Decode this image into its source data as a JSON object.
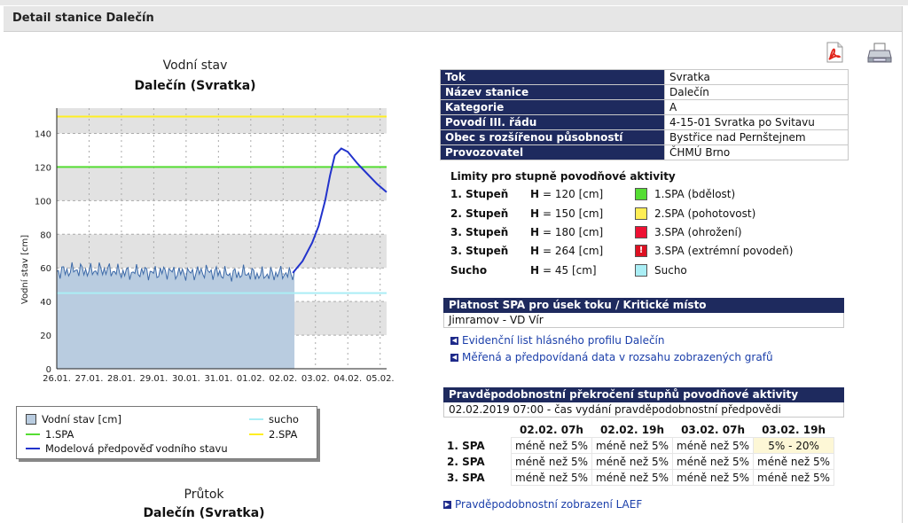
{
  "header": {
    "title": "Detail stanice Dalečín"
  },
  "icons": {
    "pdf": "pdf-icon",
    "print": "printer-icon"
  },
  "chart_data": [
    {
      "type": "line",
      "title": "Vodní stav",
      "subtitle": "Dalečín (Svratka)",
      "ylabel": "Vodní stav [cm]",
      "ylim": [
        0,
        155
      ],
      "yticks": [
        "0",
        "20",
        "40",
        "60",
        "80",
        "100",
        "120",
        "140"
      ],
      "categories": [
        "26.01.",
        "27.01.",
        "28.01.",
        "29.01.",
        "30.01.",
        "31.01.",
        "01.02.",
        "02.02.",
        "03.02.",
        "04.02.",
        "05.02."
      ],
      "series": [
        {
          "name": "Vodní stav [cm]",
          "type": "area",
          "color": "#b9cce0",
          "x": [
            0,
            0.3,
            0.6,
            1,
            1.4,
            1.8,
            2.2,
            2.6,
            3,
            3.4,
            3.8,
            4.2,
            4.6,
            5,
            5.4,
            5.8,
            6.2,
            6.6,
            7,
            7.2,
            7.35
          ],
          "values": [
            58,
            58,
            59,
            58,
            59,
            58,
            57,
            58,
            57,
            58,
            57,
            57,
            58,
            57,
            56,
            57,
            56,
            56,
            57,
            56,
            57
          ]
        },
        {
          "name": "1.SPA",
          "color": "#55dd33",
          "x": [
            0,
            10.2
          ],
          "values": [
            120,
            120
          ]
        },
        {
          "name": "2.SPA",
          "color": "#ffee22",
          "x": [
            0,
            10.2
          ],
          "values": [
            150,
            150
          ]
        },
        {
          "name": "sucho",
          "color": "#aaeef5",
          "x": [
            0,
            10.2
          ],
          "values": [
            45,
            45
          ]
        },
        {
          "name": "Modelová předpověď vodního stavu",
          "color": "#2233cc",
          "x": [
            7.3,
            7.6,
            7.9,
            8.1,
            8.3,
            8.45,
            8.6,
            8.8,
            9.0,
            9.3,
            9.6,
            9.9,
            10.2
          ],
          "values": [
            57,
            64,
            75,
            85,
            100,
            115,
            127,
            131,
            129,
            122,
            116,
            110,
            105
          ]
        }
      ]
    },
    {
      "type": "line",
      "title": "Průtok",
      "subtitle": "Dalečín (Svratka)"
    }
  ],
  "legend": {
    "items": [
      {
        "label": "Vodní stav [cm]"
      },
      {
        "label": "sucho"
      },
      {
        "label": "1.SPA"
      },
      {
        "label": "2.SPA"
      },
      {
        "label": "Modelová předpověď vodního stavu"
      }
    ]
  },
  "info": {
    "rows": [
      {
        "k": "Tok",
        "v": "Svratka"
      },
      {
        "k": "Název stanice",
        "v": "Dalečín"
      },
      {
        "k": "Kategorie",
        "v": "A"
      },
      {
        "k": "Povodí III. řádu",
        "v": "4-15-01 Svratka po Svitavu"
      },
      {
        "k": "Obec s rozšířenou působností",
        "v": "Bystřice nad Pernštejnem"
      },
      {
        "k": "Provozovatel",
        "v": "ČHMÚ Brno"
      }
    ]
  },
  "limits": {
    "title": "Limity pro stupně povodňové aktivity",
    "rows": [
      {
        "stupen": "1. Stupeň",
        "h": "H",
        "value": "= 120 [cm]",
        "color": "#55dd33",
        "desc": "1.SPA (bdělost)"
      },
      {
        "stupen": "2. Stupeň",
        "h": "H",
        "value": "= 150 [cm]",
        "color": "#ffee55",
        "desc": "2.SPA (pohotovost)"
      },
      {
        "stupen": "3. Stupeň",
        "h": "H",
        "value": "= 180 [cm]",
        "color": "#ee1133",
        "desc": "3.SPA (ohrožení)"
      },
      {
        "stupen": "3. Stupeň",
        "h": "H",
        "value": "= 264 [cm]",
        "color": "#dd1122",
        "desc": "3.SPA (extrémní povodeň)"
      },
      {
        "stupen": "Sucho",
        "h": "H",
        "value": "= 45 [cm]",
        "color": "#aaeef5",
        "desc": "Sucho"
      }
    ]
  },
  "platnost": {
    "title": "Platnost SPA pro úsek toku / Kritické místo",
    "value": "Jimramov - VD Vír"
  },
  "links": {
    "evidencni": "Evidenční list hlásného profilu Dalečín",
    "merena": "Měřená a předpovídaná data v rozsahu zobrazených grafů",
    "laef": "Pravděpodobnostní zobrazení LAEF"
  },
  "prob": {
    "title": "Pravděpodobnostní překročení stupňů povodňové aktivity",
    "issued": "02.02.2019 07:00 - čas vydání pravděpodobnostní předpovědi",
    "cols": [
      "02.02. 07h",
      "02.02. 19h",
      "03.02. 07h",
      "03.02. 19h"
    ],
    "rows": [
      {
        "label": "1. SPA",
        "cells": [
          "méně než 5%",
          "méně než 5%",
          "méně než 5%",
          "5% - 20%"
        ]
      },
      {
        "label": "2. SPA",
        "cells": [
          "méně než 5%",
          "méně než 5%",
          "méně než 5%",
          "méně než 5%"
        ]
      },
      {
        "label": "3. SPA",
        "cells": [
          "méně než 5%",
          "méně než 5%",
          "méně než 5%",
          "méně než 5%"
        ]
      }
    ]
  }
}
